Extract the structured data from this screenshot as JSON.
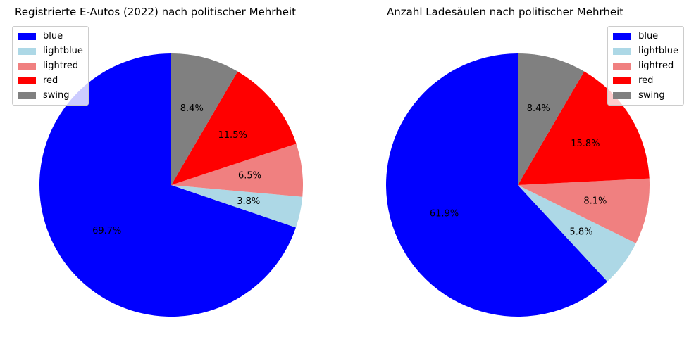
{
  "chart_data": [
    {
      "type": "pie",
      "title": "Registrierte E-Autos (2022) nach politischer Mehrheit",
      "labels": [
        "blue",
        "lightblue",
        "lightred",
        "red",
        "swing"
      ],
      "values": [
        69.7,
        3.8,
        6.5,
        11.5,
        8.4
      ],
      "value_labels": [
        "69.7%",
        "3.8%",
        "6.5%",
        "11.5%",
        "8.4%"
      ],
      "colors": [
        "#0000ff",
        "#add8e6",
        "#f08080",
        "#ff0000",
        "#808080"
      ],
      "start_angle": 90,
      "direction": "counterclockwise",
      "legend_position": "top-left"
    },
    {
      "type": "pie",
      "title": "Anzahl Ladesäulen nach politischer Mehrheit",
      "labels": [
        "blue",
        "lightblue",
        "lightred",
        "red",
        "swing"
      ],
      "values": [
        61.9,
        5.8,
        8.1,
        15.8,
        8.4
      ],
      "value_labels": [
        "61.9%",
        "5.8%",
        "8.1%",
        "15.8%",
        "8.4%"
      ],
      "colors": [
        "#0000ff",
        "#add8e6",
        "#f08080",
        "#ff0000",
        "#808080"
      ],
      "start_angle": 90,
      "direction": "counterclockwise",
      "legend_position": "top-right"
    }
  ]
}
